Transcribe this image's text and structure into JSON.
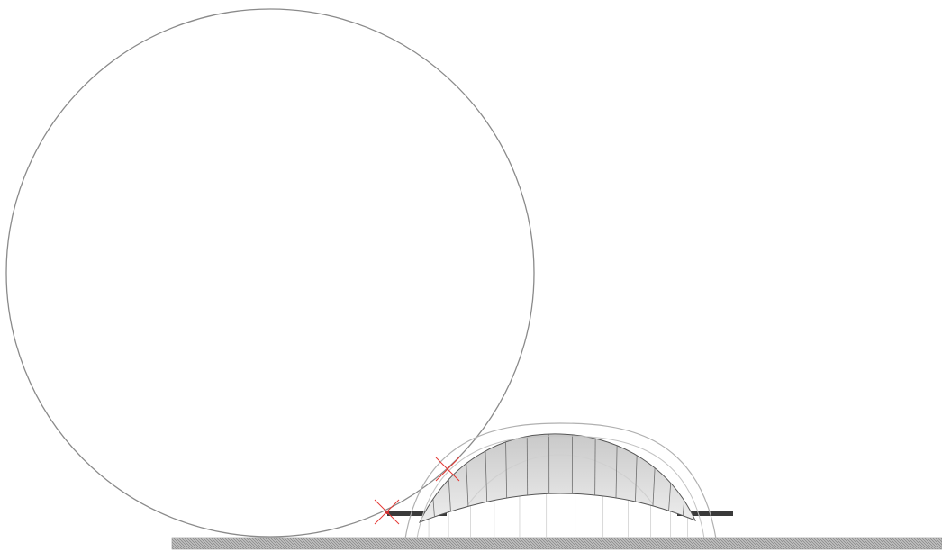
{
  "drawing": {
    "type": "architectural-elevation-sketch",
    "elements": [
      "large-circle",
      "outer-arch",
      "canopy-shell",
      "canopy-ribs",
      "support-posts",
      "side-beams",
      "ground-strip",
      "red-cross-markers"
    ],
    "colors": {
      "circle_stroke": "#8a8a8a",
      "arch_stroke": "#b3b3b3",
      "canopy_fill": "#dcdcdc",
      "rib_stroke": "#6e6e6e",
      "beam_fill": "#333333",
      "ground_fill": "#9a9a9a",
      "marker_color": "#e53935"
    },
    "rib_count": 14,
    "post_count": 12,
    "marker_count": 2
  }
}
